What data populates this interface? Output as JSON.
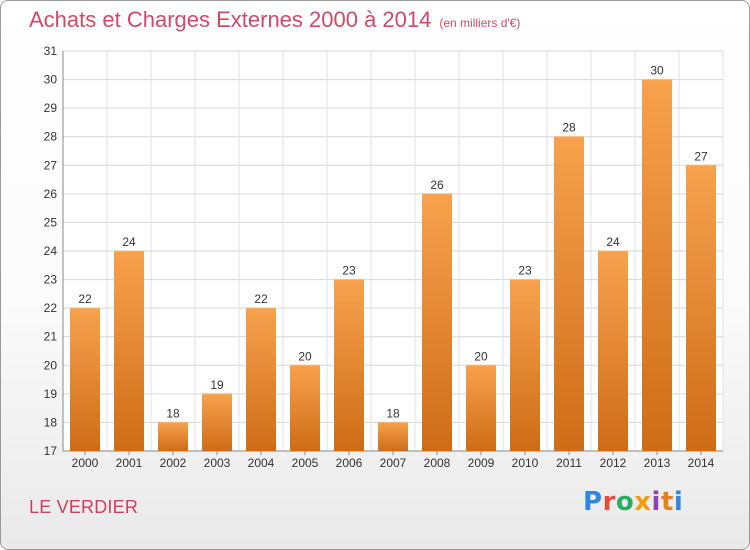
{
  "header": {
    "title": "Achats et Charges Externes 2000 à 2014",
    "unit": "(en milliers d'€)"
  },
  "footer": {
    "city": "LE VERDIER",
    "logo_text": "Proxiti",
    "logo_colors": [
      "#2e86de",
      "#e74c3c",
      "#27ae60",
      "#f39c12",
      "#8e44ad",
      "#e67e22",
      "#2e86de"
    ]
  },
  "chart_data": {
    "type": "bar",
    "title": "Achats et Charges Externes 2000 à 2014",
    "categories": [
      "2000",
      "2001",
      "2002",
      "2003",
      "2004",
      "2005",
      "2006",
      "2007",
      "2008",
      "2009",
      "2010",
      "2011",
      "2012",
      "2013",
      "2014"
    ],
    "values": [
      22,
      24,
      18,
      19,
      22,
      20,
      23,
      18,
      26,
      20,
      23,
      28,
      24,
      30,
      27
    ],
    "ylim": [
      17,
      31
    ],
    "yticks": [
      17,
      18,
      19,
      20,
      21,
      22,
      23,
      24,
      25,
      26,
      27,
      28,
      29,
      30,
      31
    ],
    "grid": true,
    "bar_color_light": "#f7a24e",
    "bar_color_dark": "#cf6c17"
  }
}
